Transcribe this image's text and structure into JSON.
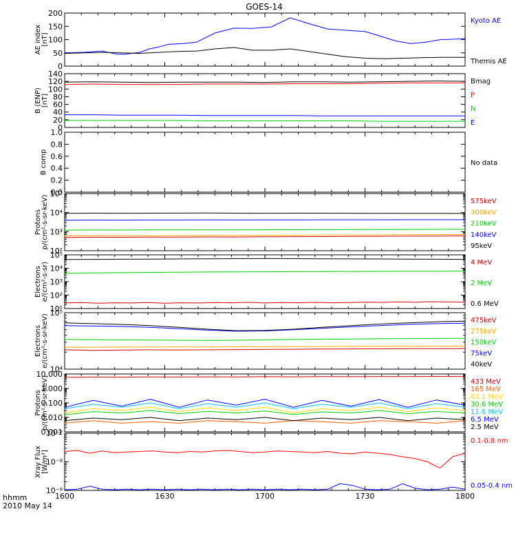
{
  "title": "GOES-14",
  "footer": {
    "line1": "hhmm",
    "line2": "2010 May 14"
  },
  "chart_data": {
    "type": "line",
    "x": {
      "unit": "UT hhmm",
      "range": [
        "1600",
        "1800"
      ],
      "ticks": [
        "1600",
        "1630",
        "1700",
        "1730",
        "1800"
      ],
      "minor_tick_minutes": 5
    },
    "panels": [
      {
        "id": "ae",
        "ylabel": [
          "AE index",
          "[nT]"
        ],
        "scale": "linear",
        "ylim": [
          0,
          200
        ],
        "yticks": [
          "0",
          "50",
          "100",
          "150",
          "200"
        ],
        "series": [
          {
            "name": "Kyoto AE",
            "color": "#0000ff",
            "points": [
              [
                0,
                50
              ],
              [
                10,
                52
              ],
              [
                20,
                57
              ],
              [
                28,
                45
              ],
              [
                32,
                45
              ],
              [
                40,
                52
              ],
              [
                45,
                65
              ],
              [
                50,
                72
              ],
              [
                55,
                82
              ],
              [
                63,
                85
              ],
              [
                70,
                90
              ],
              [
                80,
                125
              ],
              [
                90,
                143
              ],
              [
                100,
                142
              ],
              [
                110,
                148
              ],
              [
                120,
                182
              ],
              [
                130,
                160
              ],
              [
                140,
                140
              ],
              [
                150,
                135
              ],
              [
                160,
                130
              ],
              [
                168,
                113
              ],
              [
                176,
                95
              ],
              [
                184,
                85
              ],
              [
                192,
                90
              ],
              [
                200,
                100
              ],
              [
                205,
                101
              ],
              [
                213,
                104
              ]
            ]
          },
          {
            "name": "Themis AE",
            "color": "#000000",
            "points": [
              [
                0,
                48
              ],
              [
                20,
                52
              ],
              [
                40,
                48
              ],
              [
                50,
                52
              ],
              [
                60,
                55
              ],
              [
                70,
                57
              ],
              [
                80,
                65
              ],
              [
                90,
                70
              ],
              [
                100,
                60
              ],
              [
                110,
                60
              ],
              [
                120,
                65
              ],
              [
                130,
                55
              ],
              [
                140,
                45
              ],
              [
                150,
                35
              ],
              [
                160,
                30
              ],
              [
                170,
                28
              ],
              [
                180,
                30
              ],
              [
                190,
                32
              ],
              [
                200,
                33
              ],
              [
                213,
                33
              ]
            ]
          }
        ]
      },
      {
        "id": "b-enp",
        "ylabel": [
          "B (ENP)",
          "[nT]"
        ],
        "scale": "linear",
        "ylim": [
          0,
          140
        ],
        "yticks": [
          "0",
          "20",
          "40",
          "60",
          "80",
          "100",
          "120",
          "140"
        ],
        "series": [
          {
            "name": "Bmag",
            "color": "#000000",
            "values": [
              118,
              119,
              118,
              117,
              118,
              118,
              118,
              117,
              119,
              119,
              118,
              119,
              120,
              121,
              120
            ]
          },
          {
            "name": "P",
            "color": "#ff0000",
            "values": [
              112,
              113,
              112,
              112,
              112,
              113,
              113,
              113,
              114,
              114,
              114,
              115,
              116,
              116,
              116
            ]
          },
          {
            "name": "N",
            "color": "#00cc00",
            "values": [
              18,
              18,
              18,
              18,
              18,
              17,
              17,
              17,
              17,
              17,
              17,
              16,
              16,
              16,
              16
            ]
          },
          {
            "name": "E",
            "color": "#0000ff",
            "values": [
              33,
              33,
              32,
              32,
              32,
              31,
              31,
              31,
              31,
              30,
              30,
              30,
              30,
              30,
              30
            ]
          }
        ]
      },
      {
        "id": "b-comp",
        "ylabel": [
          "B comp"
        ],
        "scale": "linear",
        "ylim": [
          0,
          1
        ],
        "yticks": [
          "0.0",
          "0.2",
          "0.4",
          "0.6",
          "0.8",
          "1.0"
        ],
        "note": "No data",
        "series": []
      },
      {
        "id": "protons-lo",
        "ylabel": [
          "Protons",
          "p/(cm²-s-sr-keV)"
        ],
        "scale": "log",
        "ylim": [
          100,
          100000
        ],
        "yticks": [
          "10²",
          "10³",
          "10⁴",
          "10⁵"
        ],
        "series": [
          {
            "name": "575keV",
            "color": "#cc0000",
            "values": [
              500,
              510,
              505,
              515,
              520,
              530,
              525,
              540,
              545,
              550,
              560,
              570,
              580,
              590,
              600
            ]
          },
          {
            "name": "300keV",
            "color": "#ffa500",
            "values": [
              600,
              610,
              605,
              615,
              625,
              630,
              630,
              645,
              650,
              660,
              670,
              680,
              690,
              700,
              710
            ]
          },
          {
            "name": "210keV",
            "color": "#00cc00",
            "values": [
              1200,
              1220,
              1210,
              1230,
              1240,
              1250,
              1250,
              1260,
              1270,
              1280,
              1290,
              1300,
              1310,
              1320,
              1330
            ]
          },
          {
            "name": "140keV",
            "color": "#0000ff",
            "values": [
              4000,
              4050,
              4020,
              4080,
              4100,
              4120,
              4100,
              4140,
              4160,
              4180,
              4200,
              4210,
              4220,
              4230,
              4240
            ]
          },
          {
            "name": "95keV",
            "color": "#000000",
            "values": [
              9200,
              9300,
              9250,
              9300,
              9400,
              9450,
              9300,
              9250,
              9350,
              9300,
              9250,
              9200,
              9150,
              9100,
              9050
            ]
          }
        ]
      },
      {
        "id": "electrons-mev",
        "ylabel": [
          "Electrons",
          "e/(cm²-s-sr)"
        ],
        "scale": "log",
        "ylim": [
          10,
          100000
        ],
        "yticks": [
          "10¹",
          "10²",
          "10³",
          "10⁴",
          "10⁵"
        ],
        "series": [
          {
            "name": "4 MeV",
            "color": "#cc0000",
            "values": [
              26,
              28,
              25,
              27,
              26,
              28,
              25,
              27,
              26,
              28,
              27,
              29,
              26,
              28,
              27,
              29,
              27,
              28,
              30,
              29,
              31,
              30,
              32,
              31,
              30
            ]
          },
          {
            "name": "2 MeV",
            "color": "#00cc00",
            "values": [
              4200,
              4500,
              4700,
              4900,
              5100,
              5300,
              5400,
              5500,
              5600,
              5700,
              5800,
              5900,
              6000,
              6100,
              6200
            ]
          },
          {
            "name": "0.6 MeV",
            "color": "#000000",
            "values": [
              45000,
              46000,
              47000,
              48000,
              50000,
              51000,
              52000,
              53000,
              52000,
              51000,
              50000,
              49000,
              48000,
              47000,
              46000
            ]
          }
        ]
      },
      {
        "id": "electrons-kev",
        "ylabel": [
          "Electrons",
          "e/(cm²-s-sr-keV)"
        ],
        "scale": "log",
        "ylim": [
          10000,
          100000
        ],
        "yticks": [
          "10⁴",
          "10⁵"
        ],
        "series": [
          {
            "name": "475keV",
            "color": "#cc0000",
            "values": [
              22000,
              21500,
              21800,
              22000,
              21900,
              22000,
              22200,
              22400,
              22500,
              22700,
              22800,
              22900,
              23000,
              23100,
              23200
            ]
          },
          {
            "name": "275keV",
            "color": "#ffa500",
            "values": [
              24500,
              24500,
              24600,
              24700,
              24700,
              24800,
              24900,
              25000,
              25100,
              25200,
              25300,
              25400,
              25500,
              25600,
              25700
            ]
          },
          {
            "name": "150keV",
            "color": "#00cc00",
            "values": [
              33500,
              33200,
              33000,
              32800,
              32500,
              32300,
              32500,
              33000,
              33500,
              34000,
              34200,
              34500,
              34800,
              35000,
              35200
            ]
          },
          {
            "name": "75keV",
            "color": "#0000ff",
            "values": [
              59000,
              58000,
              57000,
              55000,
              52000,
              49000,
              47000,
              47500,
              50000,
              53000,
              56000,
              59000,
              62000,
              64000,
              65000
            ]
          },
          {
            "name": "40keV",
            "color": "#000000",
            "values": [
              66000,
              64000,
              62000,
              59000,
              55000,
              51000,
              48000,
              48500,
              51000,
              55000,
              59000,
              63000,
              66000,
              69000,
              71000
            ]
          }
        ]
      },
      {
        "id": "protons-mev",
        "ylabel": [
          "Protons",
          "p/(cm²-s-sr-keV)"
        ],
        "scale": "log",
        "ylim": [
          0.001,
          10
        ],
        "yticks": [
          "0.001",
          "0.010",
          "0.100",
          "1.000",
          "10.000"
        ],
        "series": [
          {
            "name": "433 MeV",
            "color": "#cc0000",
            "values": [
              6,
              6.2,
              6.1,
              6.3,
              6.2,
              6.4,
              6.3,
              6.5,
              6.4,
              6.6,
              6.5,
              6.7,
              6.6,
              6.8,
              6.7
            ]
          },
          {
            "name": "165 MeV",
            "color": "#ff5a00",
            "values": [
              0.004,
              0.006,
              0.004,
              0.005,
              0.004,
              0.006,
              0.005,
              0.004,
              0.006,
              0.005,
              0.004,
              0.006,
              0.005,
              0.004,
              0.006
            ]
          },
          {
            "name": "63.1 MeV",
            "color": "#ffd700",
            "values": [
              0.02,
              0.04,
              0.03,
              0.05,
              0.025,
              0.045,
              0.03,
              0.05,
              0.02,
              0.04,
              0.03,
              0.05,
              0.025,
              0.045,
              0.03
            ]
          },
          {
            "name": "30.6 MeV",
            "color": "#00cc00",
            "values": [
              0.015,
              0.025,
              0.02,
              0.03,
              0.018,
              0.026,
              0.02,
              0.028,
              0.016,
              0.024,
              0.02,
              0.03,
              0.018,
              0.026,
              0.02
            ]
          },
          {
            "name": "11.6 MeV",
            "color": "#00bfff",
            "values": [
              0.04,
              0.08,
              0.05,
              0.1,
              0.04,
              0.09,
              0.05,
              0.1,
              0.04,
              0.08,
              0.05,
              0.1,
              0.04,
              0.09,
              0.05
            ]
          },
          {
            "name": "6.5 MeV",
            "color": "#0000ff",
            "values": [
              0.05,
              0.15,
              0.06,
              0.18,
              0.05,
              0.16,
              0.07,
              0.18,
              0.05,
              0.15,
              0.06,
              0.17,
              0.05,
              0.16,
              0.07
            ]
          },
          {
            "name": "2.5 MeV",
            "color": "#000000",
            "values": [
              0.006,
              0.009,
              0.007,
              0.01,
              0.006,
              0.009,
              0.007,
              0.01,
              0.006,
              0.009,
              0.007,
              0.01,
              0.006,
              0.009,
              0.007
            ]
          }
        ]
      },
      {
        "id": "xray",
        "ylabel": [
          "Xray Flux",
          "[W/m²]"
        ],
        "scale": "log",
        "ylim": [
          1e-09,
          1e-07
        ],
        "yticks": [
          "10⁻⁹",
          "10⁻⁸",
          "10⁻⁷"
        ],
        "series": [
          {
            "name": "0.1-0.8 nm",
            "color": "#ff0000",
            "values": [
              2.3e-08,
              2.5e-08,
              2e-08,
              2.4e-08,
              2.1e-08,
              2.2e-08,
              2.3e-08,
              2.4e-08,
              2.2e-08,
              2.1e-08,
              2.3e-08,
              2.2e-08,
              2.4e-08,
              2.5e-08,
              2.3e-08,
              2.1e-08,
              2.2e-08,
              2.4e-08,
              2.3e-08,
              2.2e-08,
              2.1e-08,
              2.3e-08,
              2e-08,
              1.9e-08,
              2.2e-08,
              2e-08,
              1.8e-08,
              1.5e-08,
              1.3e-08,
              1e-08,
              6e-09,
              1.5e-08,
              2e-08
            ]
          },
          {
            "name": "0.05-0.4 nm",
            "color": "#0000ff",
            "values": [
              1.05e-09,
              1.1e-09,
              1.4e-09,
              1.1e-09,
              1.05e-09,
              1.1e-09,
              1.05e-09,
              1.1e-09,
              1.05e-09,
              1.1e-09,
              1.05e-09,
              1.1e-09,
              1.05e-09,
              1.1e-09,
              1.05e-09,
              1.1e-09,
              1.05e-09,
              1.1e-09,
              1.05e-09,
              1.1e-09,
              1.05e-09,
              1.1e-09,
              1.7e-09,
              1.5e-09,
              1.1e-09,
              1.05e-09,
              1.1e-09,
              1.7e-09,
              1.2e-09,
              1.05e-09,
              1.1e-09,
              1.3e-09,
              1.1e-09
            ]
          }
        ]
      }
    ]
  }
}
